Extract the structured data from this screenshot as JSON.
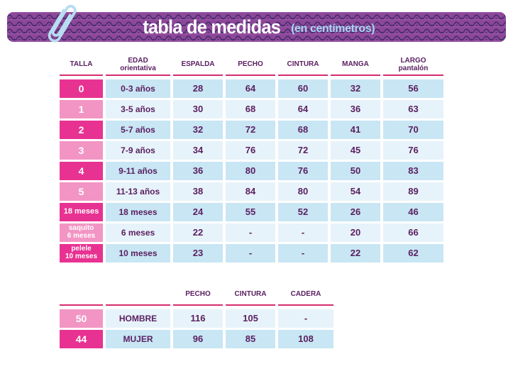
{
  "banner": {
    "title": "tabla de medidas",
    "subtitle": "(en centímetros)"
  },
  "icons": {
    "paperclip": "paperclip-icon"
  },
  "colors": {
    "pink_dark": "#e83292",
    "pink_light": "#f295c4",
    "blue_dark": "#c8e6f4",
    "blue_light": "#e7f3fa",
    "plum_text": "#5b2060",
    "underline": "#d62d6e",
    "banner_base": "#8c4797",
    "banner_motif": "#3f2a6d",
    "banner_motif2": "#a55eb2",
    "subtitle_blue": "#a5d8f2",
    "paperclip_blue": "#b7ddf1"
  },
  "chart_data": [
    {
      "type": "table",
      "title": "tabla de medidas (en centímetros)",
      "columns": [
        "TALLA",
        "EDAD orientativa",
        "ESPALDA",
        "PECHO",
        "CINTURA",
        "MANGA",
        "LARGO pantalón"
      ],
      "rows": [
        [
          "0",
          "0-3 años",
          28,
          64,
          60,
          32,
          56
        ],
        [
          "1",
          "3-5 años",
          30,
          68,
          64,
          36,
          63
        ],
        [
          "2",
          "5-7 años",
          32,
          72,
          68,
          41,
          70
        ],
        [
          "3",
          "7-9 años",
          34,
          76,
          72,
          45,
          76
        ],
        [
          "4",
          "9-11 años",
          36,
          80,
          76,
          50,
          83
        ],
        [
          "5",
          "11-13 años",
          38,
          84,
          80,
          54,
          89
        ],
        [
          "18 meses",
          "18 meses",
          24,
          55,
          52,
          26,
          46
        ],
        [
          "saquito 6 meses",
          "6 meses",
          22,
          "-",
          "-",
          20,
          66
        ],
        [
          "pelele 10 meses",
          "10 meses",
          23,
          "-",
          "-",
          22,
          62
        ]
      ]
    },
    {
      "type": "table",
      "title": "tallas adulto",
      "columns": [
        "TALLA",
        "",
        "PECHO",
        "CINTURA",
        "CADERA"
      ],
      "rows": [
        [
          "50",
          "HOMBRE",
          116,
          105,
          "-"
        ],
        [
          "44",
          "MUJER",
          96,
          85,
          108
        ]
      ]
    }
  ],
  "tables": {
    "main": {
      "headers": [
        [
          "TALLA"
        ],
        [
          "EDAD",
          "orientativa"
        ],
        [
          "ESPALDA"
        ],
        [
          "PECHO"
        ],
        [
          "CINTURA"
        ],
        [
          "MANGA"
        ],
        [
          "LARGO",
          "pantalón"
        ]
      ],
      "rows": [
        {
          "talla": [
            "0"
          ],
          "tone": "dark",
          "cells": [
            "0-3 años",
            "28",
            "64",
            "60",
            "32",
            "56"
          ]
        },
        {
          "talla": [
            "1"
          ],
          "tone": "light",
          "cells": [
            "3-5 años",
            "30",
            "68",
            "64",
            "36",
            "63"
          ]
        },
        {
          "talla": [
            "2"
          ],
          "tone": "dark",
          "cells": [
            "5-7 años",
            "32",
            "72",
            "68",
            "41",
            "70"
          ]
        },
        {
          "talla": [
            "3"
          ],
          "tone": "light",
          "cells": [
            "7-9 años",
            "34",
            "76",
            "72",
            "45",
            "76"
          ]
        },
        {
          "talla": [
            "4"
          ],
          "tone": "dark",
          "cells": [
            "9-11 años",
            "36",
            "80",
            "76",
            "50",
            "83"
          ]
        },
        {
          "talla": [
            "5"
          ],
          "tone": "light",
          "cells": [
            "11-13 años",
            "38",
            "84",
            "80",
            "54",
            "89"
          ]
        },
        {
          "talla": [
            "18 meses"
          ],
          "tone": "dark",
          "cells": [
            "18 meses",
            "24",
            "55",
            "52",
            "26",
            "46"
          ]
        },
        {
          "talla": [
            "saquito",
            "6 meses"
          ],
          "tone": "light",
          "cells": [
            "6 meses",
            "22",
            "-",
            "-",
            "20",
            "66"
          ]
        },
        {
          "talla": [
            "pelele",
            "10 meses"
          ],
          "tone": "dark",
          "cells": [
            "10 meses",
            "23",
            "-",
            "-",
            "22",
            "62"
          ]
        }
      ]
    },
    "adults": {
      "headers": [
        [
          ""
        ],
        [
          ""
        ],
        [
          "PECHO"
        ],
        [
          "CINTURA"
        ],
        [
          "CADERA"
        ]
      ],
      "rows": [
        {
          "talla": [
            "50"
          ],
          "tone": "light",
          "cells": [
            "HOMBRE",
            "116",
            "105",
            "-"
          ]
        },
        {
          "talla": [
            "44"
          ],
          "tone": "dark",
          "cells": [
            "MUJER",
            "96",
            "85",
            "108"
          ]
        }
      ]
    }
  }
}
